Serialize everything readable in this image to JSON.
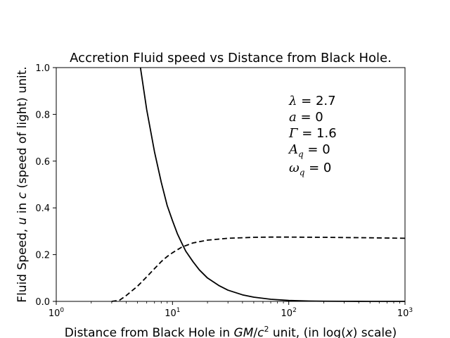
{
  "chart_data": {
    "type": "line",
    "title": "Accretion Fluid speed vs Distance from Black Hole.",
    "xlabel": {
      "prefix": "Distance from Black Hole in ",
      "unit_italic": "GM",
      "unit_slash": "/",
      "unit_c": "c",
      "unit_exp": "2",
      "middle": " unit, (in log(",
      "var": "x",
      "suffix": ") scale)"
    },
    "ylabel": {
      "prefix": "Fluid Speed, ",
      "var": "u",
      "middle": " in ",
      "c": "c",
      "suffix": " (speed of light) unit."
    },
    "xscale": "log",
    "xlim": [
      1,
      1000
    ],
    "ylim": [
      0.0,
      1.0
    ],
    "grid": false,
    "x_ticks": [
      {
        "value": 1,
        "base": "10",
        "exp": "0"
      },
      {
        "value": 10,
        "base": "10",
        "exp": "1"
      },
      {
        "value": 100,
        "base": "10",
        "exp": "2"
      },
      {
        "value": 1000,
        "base": "10",
        "exp": "3"
      }
    ],
    "y_ticks": [
      {
        "value": 0.0,
        "label": "0.0"
      },
      {
        "value": 0.2,
        "label": "0.2"
      },
      {
        "value": 0.4,
        "label": "0.4"
      },
      {
        "value": 0.6,
        "label": "0.6"
      },
      {
        "value": 0.8,
        "label": "0.8"
      },
      {
        "value": 1.0,
        "label": "1.0"
      }
    ],
    "series": [
      {
        "style": "solid",
        "color": "#000000",
        "points": [
          [
            5.3,
            1.0
          ],
          [
            6.0,
            0.82
          ],
          [
            7.0,
            0.64
          ],
          [
            8.0,
            0.51
          ],
          [
            9.0,
            0.41
          ],
          [
            10.0,
            0.345
          ],
          [
            11.0,
            0.29
          ],
          [
            12.0,
            0.25
          ],
          [
            13.0,
            0.215
          ],
          [
            15.0,
            0.17
          ],
          [
            17.0,
            0.135
          ],
          [
            20.0,
            0.1
          ],
          [
            25.0,
            0.068
          ],
          [
            30.0,
            0.048
          ],
          [
            40.0,
            0.028
          ],
          [
            50.0,
            0.018
          ],
          [
            70.0,
            0.009
          ],
          [
            100.0,
            0.004
          ],
          [
            150.0,
            0.0015
          ],
          [
            200.0,
            0.0008
          ],
          [
            300.0,
            0.0003
          ],
          [
            500.0,
            0.0001
          ],
          [
            1000.0,
            0.0
          ]
        ]
      },
      {
        "style": "dashed",
        "color": "#000000",
        "points": [
          [
            3.0,
            0.0
          ],
          [
            3.5,
            0.005
          ],
          [
            4.0,
            0.025
          ],
          [
            5.0,
            0.065
          ],
          [
            6.0,
            0.105
          ],
          [
            7.0,
            0.14
          ],
          [
            8.0,
            0.17
          ],
          [
            9.0,
            0.192
          ],
          [
            10.0,
            0.208
          ],
          [
            12.0,
            0.232
          ],
          [
            15.0,
            0.25
          ],
          [
            20.0,
            0.262
          ],
          [
            30.0,
            0.27
          ],
          [
            50.0,
            0.274
          ],
          [
            70.0,
            0.275
          ],
          [
            100.0,
            0.275
          ],
          [
            200.0,
            0.274
          ],
          [
            500.0,
            0.272
          ],
          [
            1000.0,
            0.27
          ]
        ]
      }
    ],
    "annotations": [
      {
        "sym": "λ",
        "sub": "",
        "rest": " = 2.7"
      },
      {
        "sym": "a",
        "sub": "",
        "rest": " = 0"
      },
      {
        "sym": "Γ",
        "sub": "",
        "rest": " = 1.6"
      },
      {
        "sym": "A",
        "sub": "q",
        "rest": " = 0"
      },
      {
        "sym": "ω",
        "sub": "q",
        "rest": " = 0"
      }
    ]
  }
}
